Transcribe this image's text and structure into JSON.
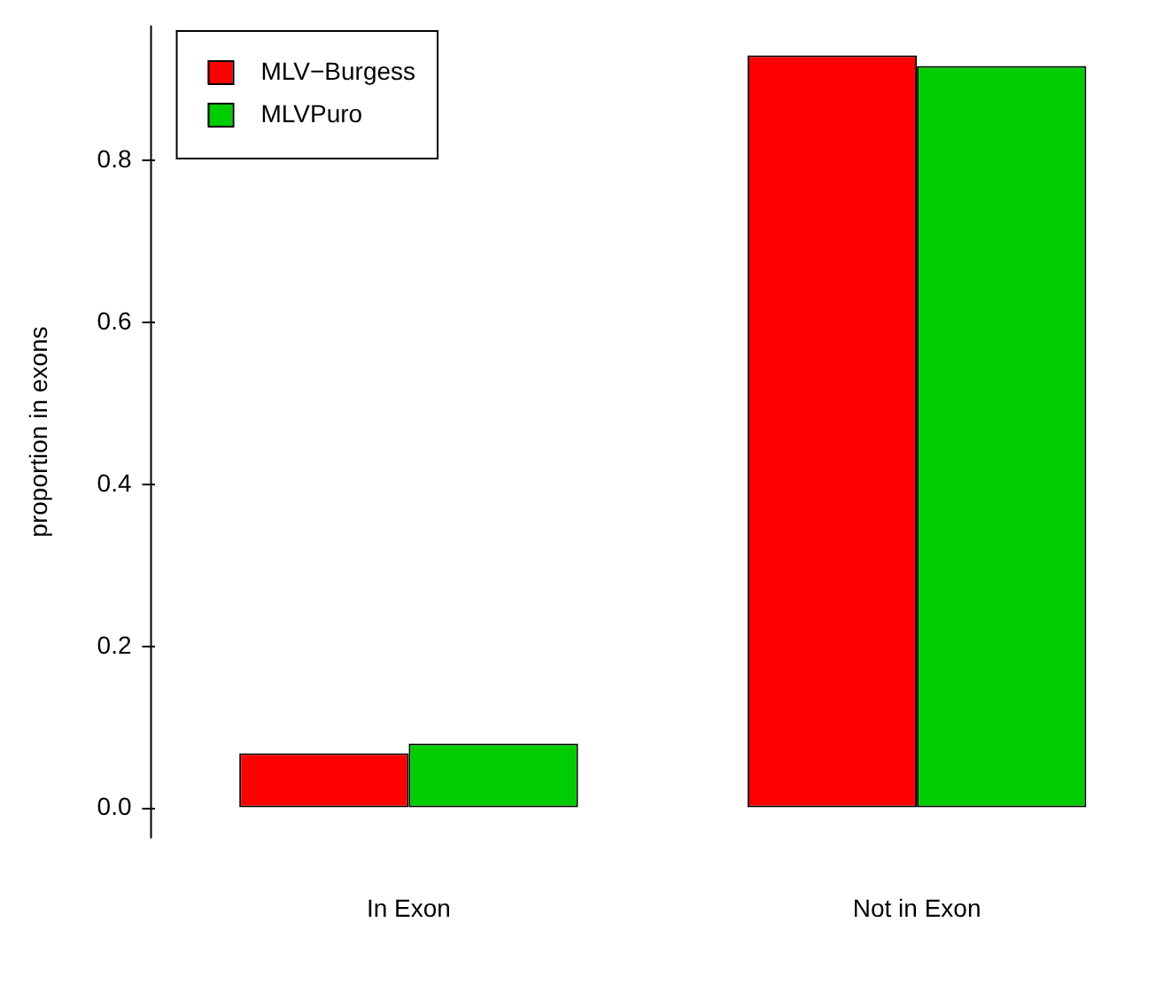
{
  "chart_data": {
    "type": "bar",
    "ylabel": "proportion in exons",
    "categories": [
      "In Exon",
      "Not in Exon"
    ],
    "series": [
      {
        "name": "MLV−Burgess",
        "color": "#ff0000",
        "values": [
          0.068,
          0.93
        ]
      },
      {
        "name": "MLVPuro",
        "color": "#00cd00",
        "values": [
          0.08,
          0.917
        ]
      }
    ],
    "ylim": [
      -0.037,
      0.967
    ],
    "yticks": [
      {
        "value": 0,
        "label": "0.0"
      },
      {
        "value": 0.2,
        "label": "0.2"
      },
      {
        "value": 0.4,
        "label": "0.4"
      },
      {
        "value": 0.6,
        "label": "0.6"
      },
      {
        "value": 0.8,
        "label": "0.8"
      }
    ],
    "grid": false,
    "legend": "top left"
  }
}
